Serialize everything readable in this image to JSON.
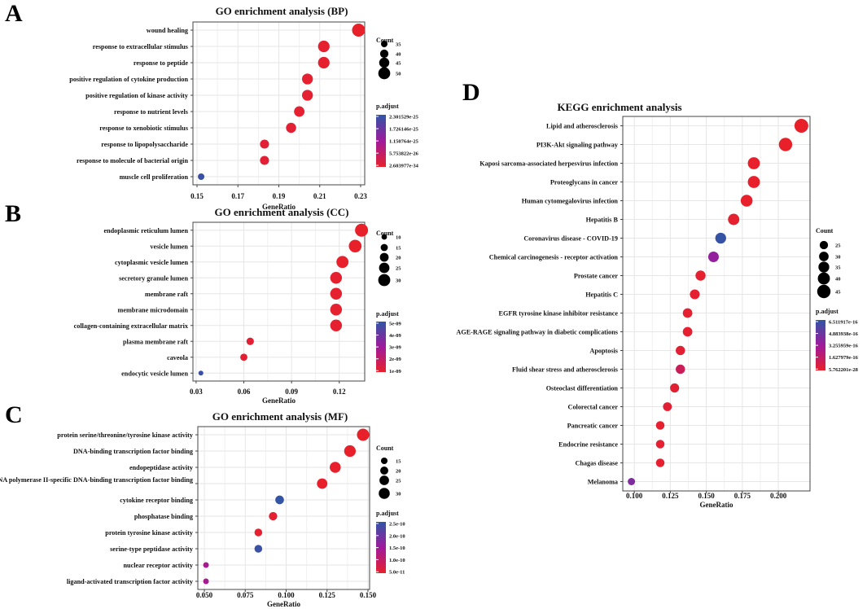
{
  "chart_data": [
    {
      "panel": "A",
      "type": "scatter",
      "title": "GO enrichment analysis (BP)",
      "xlabel": "GeneRatio",
      "xlim": [
        0.148,
        0.232
      ],
      "xticks": [
        "0.15",
        "0.17",
        "0.19",
        "0.21",
        "0.23"
      ],
      "xtick_values": [
        0.15,
        0.17,
        0.19,
        0.21,
        0.23
      ],
      "categories": [
        "wound healing",
        "response to extracellular stimulus",
        "response to peptide",
        "positive regulation of cytokine production",
        "positive regulation of kinase activity",
        "response to nutrient levels",
        "response to xenobiotic stimulus",
        "response to lipopolysaccharide",
        "response to molecule of bacterial origin",
        "muscle cell proliferation"
      ],
      "gene_ratio": [
        0.229,
        0.212,
        0.212,
        0.204,
        0.204,
        0.2,
        0.196,
        0.183,
        0.183,
        0.152
      ],
      "count": [
        53,
        49,
        49,
        47,
        47,
        46,
        45,
        42,
        42,
        35
      ],
      "color_t": [
        1.0,
        0.98,
        0.98,
        0.97,
        0.97,
        0.97,
        0.96,
        0.95,
        0.95,
        0.05
      ],
      "size_legend_title": "Count",
      "size_legend": [
        "35",
        "40",
        "45",
        "50"
      ],
      "size_legend_values": [
        35,
        40,
        45,
        50
      ],
      "size_range": [
        35,
        53
      ],
      "color_legend_title": "p.adjust",
      "color_legend": [
        "2.301529e-25",
        "1.726146e-25",
        "1.150764e-25",
        "5.753822e-26",
        "2.603977e-34"
      ]
    },
    {
      "panel": "B",
      "type": "scatter",
      "title": "GO enrichment analysis (CC)",
      "xlabel": "GeneRatio",
      "xlim": [
        0.028,
        0.136
      ],
      "xticks": [
        "0.03",
        "0.06",
        "0.09",
        "0.12"
      ],
      "xtick_values": [
        0.03,
        0.06,
        0.09,
        0.12
      ],
      "categories": [
        "endoplasmic reticulum lumen",
        "vesicle lumen",
        "cytoplasmic vesicle lumen",
        "secretory granule lumen",
        "membrane raft",
        "membrane microdomain",
        "collagen-containing extracellular matrix",
        "plasma membrane raft",
        "caveola",
        "endocytic vesicle lumen"
      ],
      "gene_ratio": [
        0.134,
        0.13,
        0.122,
        0.118,
        0.118,
        0.118,
        0.118,
        0.064,
        0.06,
        0.033
      ],
      "count": [
        33,
        32,
        30,
        29,
        29,
        29,
        29,
        16,
        15,
        8
      ],
      "color_t": [
        1.0,
        1.0,
        0.99,
        0.98,
        0.98,
        0.98,
        0.98,
        0.96,
        0.96,
        0.05
      ],
      "size_legend_title": "Count",
      "size_legend": [
        "10",
        "15",
        "20",
        "25",
        "30"
      ],
      "size_legend_values": [
        10,
        15,
        20,
        25,
        30
      ],
      "size_range": [
        8,
        33
      ],
      "color_legend_title": "p.adjust",
      "color_legend": [
        "5e-09",
        "4e-09",
        "3e-09",
        "2e-09",
        "1e-09"
      ]
    },
    {
      "panel": "C",
      "type": "scatter",
      "title": "GO enrichment analysis (MF)",
      "xlabel": "GeneRatio",
      "xlim": [
        0.046,
        0.151
      ],
      "xticks": [
        "0.050",
        "0.075",
        "0.100",
        "0.125",
        "0.150"
      ],
      "xtick_values": [
        0.05,
        0.075,
        0.1,
        0.125,
        0.15
      ],
      "categories": [
        "protein serine/threonine/tyrosine kinase activity",
        "DNA-binding transcription factor binding",
        "endopeptidase activity",
        "RNA polymerase II-specific DNA-binding transcription factor binding",
        "cytokine receptor binding",
        "phosphatase binding",
        "protein tyrosine kinase activity",
        "serine-type peptidase activity",
        "nuclear receptor activity",
        "ligand-activated transcription factor activity"
      ],
      "gene_ratio": [
        0.147,
        0.139,
        0.13,
        0.122,
        0.096,
        0.092,
        0.083,
        0.083,
        0.051,
        0.051
      ],
      "count": [
        34,
        32,
        30,
        28,
        22,
        21,
        19,
        19,
        12,
        12
      ],
      "color_t": [
        1.0,
        1.0,
        0.99,
        0.99,
        0.02,
        0.97,
        0.97,
        0.05,
        0.55,
        0.55
      ],
      "size_legend_title": "Count",
      "size_legend": [
        "15",
        "20",
        "25",
        "30"
      ],
      "size_legend_values": [
        15,
        20,
        25,
        30
      ],
      "size_range": [
        12,
        34
      ],
      "color_legend_title": "p.adjust",
      "color_legend": [
        "2.5e-10",
        "2.0e-10",
        "1.5e-10",
        "1.0e-10",
        "5.0e-11"
      ]
    },
    {
      "panel": "D",
      "type": "scatter",
      "title": "KEGG enrichment analysis",
      "xlabel": "GeneRatio",
      "xlim": [
        0.092,
        0.222
      ],
      "xticks": [
        "0.100",
        "0.125",
        "0.150",
        "0.175",
        "0.200"
      ],
      "xtick_values": [
        0.1,
        0.125,
        0.15,
        0.175,
        0.2
      ],
      "categories": [
        "Lipid and atherosclerosis",
        "PI3K-Akt signaling pathway",
        "Kaposi sarcoma-associated herpesvirus infection",
        "Proteoglycans in cancer",
        "Human cytomegalovirus infection",
        "Hepatitis B",
        "Coronavirus disease - COVID-19",
        "Chemical carcinogenesis - receptor activation",
        "Prostate cancer",
        "Hepatitis C",
        "EGFR tyrosine kinase inhibitor resistance",
        "AGE-RAGE signaling pathway in diabetic complications",
        "Apoptosis",
        "Fluid shear stress and atherosclerosis",
        "Osteoclast differentiation",
        "Colorectal cancer",
        "Pancreatic cancer",
        "Endocrine resistance",
        "Chagas disease",
        "Melanoma"
      ],
      "gene_ratio": [
        0.216,
        0.205,
        0.183,
        0.183,
        0.178,
        0.169,
        0.16,
        0.155,
        0.146,
        0.142,
        0.137,
        0.137,
        0.132,
        0.132,
        0.128,
        0.123,
        0.118,
        0.118,
        0.118,
        0.098
      ],
      "count": [
        47,
        45,
        40,
        40,
        39,
        37,
        35,
        34,
        32,
        31,
        30,
        30,
        29,
        29,
        28,
        27,
        26,
        26,
        26,
        21
      ],
      "color_t": [
        1.0,
        1.0,
        0.99,
        0.99,
        0.99,
        0.98,
        0.03,
        0.45,
        0.98,
        0.97,
        0.97,
        0.97,
        0.96,
        0.8,
        0.96,
        0.96,
        0.97,
        0.97,
        0.97,
        0.35
      ],
      "size_legend_title": "Count",
      "size_legend": [
        "25",
        "30",
        "35",
        "40",
        "45"
      ],
      "size_legend_values": [
        25,
        30,
        35,
        40,
        45
      ],
      "size_range": [
        21,
        47
      ],
      "color_legend_title": "p.adjust",
      "color_legend": [
        "6.511917e-16",
        "4.883938e-16",
        "3.255959e-16",
        "1.627979e-16",
        "5.762201e-28"
      ]
    }
  ],
  "colors": {
    "low": "#e8202a",
    "mid": "#a01a9c",
    "high": "#2f56a6"
  }
}
